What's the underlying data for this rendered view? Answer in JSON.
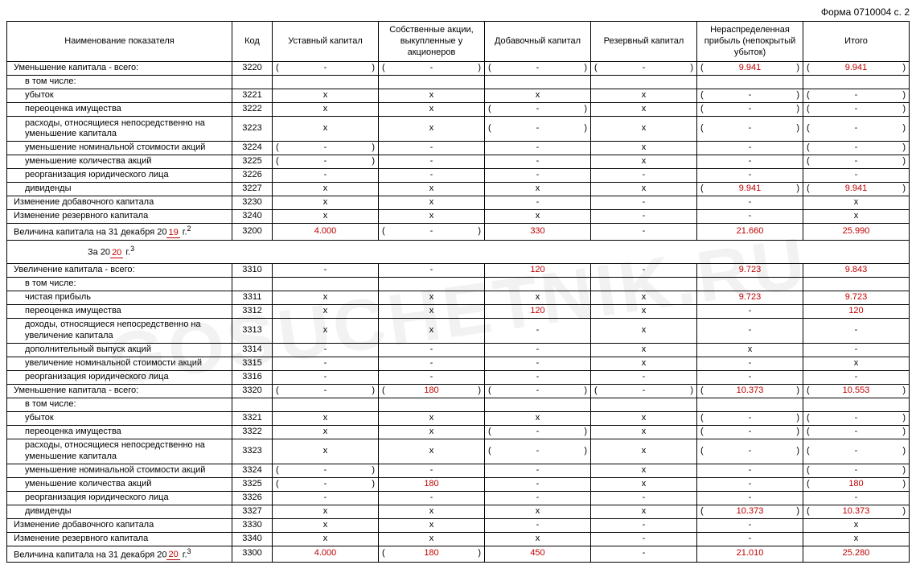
{
  "form_header": "Форма 0710004 с. 2",
  "watermark": "GOSUCHETNIK.RU",
  "columns": {
    "name": "Наименование показателя",
    "code": "Код",
    "c1": "Уставный капитал",
    "c2": "Собственные акции, выкупленные у акционеров",
    "c3": "Добавочный капитал",
    "c4": "Резервный капитал",
    "c5": "Нераспределенная прибыль (непокрытый убыток)",
    "c6": "Итого"
  },
  "rows": [
    {
      "name": "Уменьшение капитала - всего:",
      "ind": 0,
      "code": "3220",
      "c": [
        {
          "p": true,
          "v": "-"
        },
        {
          "p": true,
          "v": "-"
        },
        {
          "p": true,
          "v": "-"
        },
        {
          "p": true,
          "v": "-"
        },
        {
          "p": true,
          "v": "9.941",
          "red": true
        },
        {
          "p": true,
          "v": "9.941",
          "red": true
        }
      ]
    },
    {
      "name": "в том числе:",
      "ind": 1,
      "nocells": true
    },
    {
      "name": "убыток",
      "ind": 1,
      "code": "3221",
      "c": [
        {
          "v": "х"
        },
        {
          "v": "х"
        },
        {
          "v": "х"
        },
        {
          "v": "х"
        },
        {
          "p": true,
          "v": "-"
        },
        {
          "p": true,
          "v": "-"
        }
      ]
    },
    {
      "name": "переоценка имущества",
      "ind": 1,
      "code": "3222",
      "c": [
        {
          "v": "х"
        },
        {
          "v": "х"
        },
        {
          "p": true,
          "v": "-"
        },
        {
          "v": "х"
        },
        {
          "p": true,
          "v": "-"
        },
        {
          "p": true,
          "v": "-"
        }
      ]
    },
    {
      "name": "расходы, относящиеся непосредственно на уменьшение капитала",
      "ind": 1,
      "code": "3223",
      "tall": true,
      "c": [
        {
          "v": "х"
        },
        {
          "v": "х"
        },
        {
          "p": true,
          "v": "-"
        },
        {
          "v": "х"
        },
        {
          "p": true,
          "v": "-"
        },
        {
          "p": true,
          "v": "-"
        }
      ]
    },
    {
      "name": "уменьшение номинальной стоимости акций",
      "ind": 1,
      "code": "3224",
      "c": [
        {
          "p": true,
          "v": "-"
        },
        {
          "v": "-"
        },
        {
          "v": "-"
        },
        {
          "v": "х"
        },
        {
          "v": "-"
        },
        {
          "p": true,
          "v": "-"
        }
      ]
    },
    {
      "name": "уменьшение количества акций",
      "ind": 1,
      "code": "3225",
      "c": [
        {
          "p": true,
          "v": "-"
        },
        {
          "v": "-"
        },
        {
          "v": "-"
        },
        {
          "v": "х"
        },
        {
          "v": "-"
        },
        {
          "p": true,
          "v": "-"
        }
      ]
    },
    {
      "name": "реорганизация юридического лица",
      "ind": 1,
      "code": "3226",
      "c": [
        {
          "v": "-"
        },
        {
          "v": "-"
        },
        {
          "v": "-"
        },
        {
          "v": "-"
        },
        {
          "v": "-"
        },
        {
          "v": "-"
        }
      ]
    },
    {
      "name": "дивиденды",
      "ind": 1,
      "code": "3227",
      "c": [
        {
          "v": "х"
        },
        {
          "v": "х"
        },
        {
          "v": "х"
        },
        {
          "v": "х"
        },
        {
          "p": true,
          "v": "9.941",
          "red": true
        },
        {
          "p": true,
          "v": "9.941",
          "red": true
        }
      ]
    },
    {
      "name": "Изменение добавочного капитала",
      "ind": 0,
      "code": "3230",
      "c": [
        {
          "v": "х"
        },
        {
          "v": "х"
        },
        {
          "v": "-"
        },
        {
          "v": "-"
        },
        {
          "v": "-"
        },
        {
          "v": "х"
        }
      ]
    },
    {
      "name": "Изменение резервного капитала",
      "ind": 0,
      "code": "3240",
      "c": [
        {
          "v": "х"
        },
        {
          "v": "х"
        },
        {
          "v": "х"
        },
        {
          "v": "-"
        },
        {
          "v": "-"
        },
        {
          "v": "х"
        }
      ]
    },
    {
      "name": "Величина капитала на 31 декабря 20",
      "yr": "19",
      "sup": "2",
      "ind": 0,
      "code": "3200",
      "c": [
        {
          "v": "4.000",
          "red": true
        },
        {
          "p": true,
          "v": "-"
        },
        {
          "v": "330",
          "red": true
        },
        {
          "v": "-"
        },
        {
          "v": "21.660",
          "red": true
        },
        {
          "v": "25.990",
          "red": true
        }
      ]
    },
    {
      "section": "За 20",
      "yr": "20",
      "sup": "3"
    },
    {
      "name": "Увеличение капитала - всего:",
      "ind": 0,
      "code": "3310",
      "c": [
        {
          "v": "-"
        },
        {
          "v": "-"
        },
        {
          "v": "120",
          "red": true
        },
        {
          "v": "-"
        },
        {
          "v": "9.723",
          "red": true
        },
        {
          "v": "9.843",
          "red": true
        }
      ]
    },
    {
      "name": "в том числе:",
      "ind": 1,
      "nocells": true
    },
    {
      "name": "чистая прибыль",
      "ind": 1,
      "code": "3311",
      "c": [
        {
          "v": "х"
        },
        {
          "v": "х"
        },
        {
          "v": "х"
        },
        {
          "v": "х"
        },
        {
          "v": "9.723",
          "red": true
        },
        {
          "v": "9.723",
          "red": true
        }
      ]
    },
    {
      "name": "переоценка имущества",
      "ind": 1,
      "code": "3312",
      "c": [
        {
          "v": "х"
        },
        {
          "v": "х"
        },
        {
          "v": "120",
          "red": true
        },
        {
          "v": "х"
        },
        {
          "v": "-"
        },
        {
          "v": "120",
          "red": true
        }
      ]
    },
    {
      "name": "доходы, относящиеся непосредственно на увеличение капитала",
      "ind": 1,
      "code": "3313",
      "tall": true,
      "c": [
        {
          "v": "х"
        },
        {
          "v": "х"
        },
        {
          "v": "-"
        },
        {
          "v": "х"
        },
        {
          "v": "-"
        },
        {
          "v": "-"
        }
      ]
    },
    {
      "name": "дополнительный выпуск акций",
      "ind": 1,
      "code": "3314",
      "c": [
        {
          "v": "-"
        },
        {
          "v": "-"
        },
        {
          "v": "-"
        },
        {
          "v": "х"
        },
        {
          "v": "х"
        },
        {
          "v": "-"
        }
      ]
    },
    {
      "name": "увеличение номинальной стоимости акций",
      "ind": 1,
      "code": "3315",
      "c": [
        {
          "v": "-"
        },
        {
          "v": "-"
        },
        {
          "v": "-"
        },
        {
          "v": "х"
        },
        {
          "v": "-"
        },
        {
          "v": "х"
        }
      ]
    },
    {
      "name": "реорганизация юридического лица",
      "ind": 1,
      "code": "3316",
      "c": [
        {
          "v": "-"
        },
        {
          "v": "-"
        },
        {
          "v": "-"
        },
        {
          "v": "-"
        },
        {
          "v": "-"
        },
        {
          "v": "-"
        }
      ]
    },
    {
      "name": "Уменьшение капитала - всего:",
      "ind": 0,
      "code": "3320",
      "c": [
        {
          "p": true,
          "v": "-"
        },
        {
          "p": true,
          "v": "180",
          "red": true
        },
        {
          "p": true,
          "v": "-"
        },
        {
          "p": true,
          "v": "-"
        },
        {
          "p": true,
          "v": "10.373",
          "red": true
        },
        {
          "p": true,
          "v": "10.553",
          "red": true
        }
      ]
    },
    {
      "name": "в том числе:",
      "ind": 1,
      "nocells": true
    },
    {
      "name": "убыток",
      "ind": 1,
      "code": "3321",
      "c": [
        {
          "v": "х"
        },
        {
          "v": "х"
        },
        {
          "v": "х"
        },
        {
          "v": "х"
        },
        {
          "p": true,
          "v": "-"
        },
        {
          "p": true,
          "v": "-"
        }
      ]
    },
    {
      "name": "переоценка имущества",
      "ind": 1,
      "code": "3322",
      "c": [
        {
          "v": "х"
        },
        {
          "v": "х"
        },
        {
          "p": true,
          "v": "-"
        },
        {
          "v": "х"
        },
        {
          "p": true,
          "v": "-"
        },
        {
          "p": true,
          "v": "-"
        }
      ]
    },
    {
      "name": "расходы, относящиеся непосредственно на уменьшение капитала",
      "ind": 1,
      "code": "3323",
      "tall": true,
      "c": [
        {
          "v": "х"
        },
        {
          "v": "х"
        },
        {
          "p": true,
          "v": "-"
        },
        {
          "v": "х"
        },
        {
          "p": true,
          "v": "-"
        },
        {
          "p": true,
          "v": "-"
        }
      ]
    },
    {
      "name": "уменьшение номинальной стоимости акций",
      "ind": 1,
      "code": "3324",
      "c": [
        {
          "p": true,
          "v": "-"
        },
        {
          "v": "-"
        },
        {
          "v": "-"
        },
        {
          "v": "х"
        },
        {
          "v": "-"
        },
        {
          "p": true,
          "v": "-"
        }
      ]
    },
    {
      "name": "уменьшение количества акций",
      "ind": 1,
      "code": "3325",
      "c": [
        {
          "p": true,
          "v": "-"
        },
        {
          "v": "180",
          "red": true
        },
        {
          "v": "-"
        },
        {
          "v": "х"
        },
        {
          "v": "-"
        },
        {
          "p": true,
          "v": "180",
          "red": true
        }
      ]
    },
    {
      "name": "реорганизация юридического лица",
      "ind": 1,
      "code": "3326",
      "c": [
        {
          "v": "-"
        },
        {
          "v": "-"
        },
        {
          "v": "-"
        },
        {
          "v": "-"
        },
        {
          "v": "-"
        },
        {
          "v": "-"
        }
      ]
    },
    {
      "name": "дивиденды",
      "ind": 1,
      "code": "3327",
      "c": [
        {
          "v": "х"
        },
        {
          "v": "х"
        },
        {
          "v": "х"
        },
        {
          "v": "х"
        },
        {
          "p": true,
          "v": "10.373",
          "red": true
        },
        {
          "p": true,
          "v": "10.373",
          "red": true
        }
      ]
    },
    {
      "name": "Изменение добавочного капитала",
      "ind": 0,
      "code": "3330",
      "c": [
        {
          "v": "х"
        },
        {
          "v": "х"
        },
        {
          "v": "-"
        },
        {
          "v": "-"
        },
        {
          "v": "-"
        },
        {
          "v": "х"
        }
      ]
    },
    {
      "name": "Изменение резервного капитала",
      "ind": 0,
      "code": "3340",
      "c": [
        {
          "v": "х"
        },
        {
          "v": "х"
        },
        {
          "v": "х"
        },
        {
          "v": "-"
        },
        {
          "v": "-"
        },
        {
          "v": "х"
        }
      ]
    },
    {
      "name": "Величина капитала на 31 декабря 20",
      "yr": "20",
      "sup": "3",
      "ind": 0,
      "code": "3300",
      "c": [
        {
          "v": "4.000",
          "red": true
        },
        {
          "p": true,
          "v": "180",
          "red": true
        },
        {
          "v": "450",
          "red": true
        },
        {
          "v": "-"
        },
        {
          "v": "21.010",
          "red": true
        },
        {
          "v": "25.280",
          "red": true
        }
      ]
    }
  ]
}
